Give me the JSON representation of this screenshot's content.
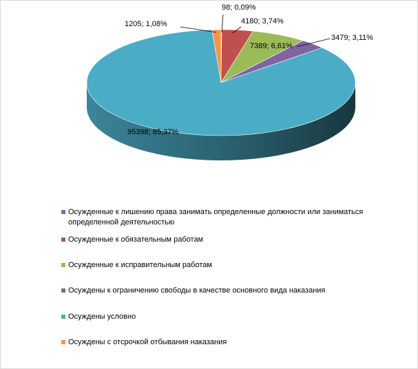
{
  "chart_data": {
    "type": "pie",
    "title": "",
    "legend_position": "bottom",
    "slices": [
      {
        "name": "Осужденные к лишению права занимать определенные должности или заниматься определенной деятельностью",
        "value": 98,
        "percent": 0.09,
        "label": "98; 0,09%",
        "color": "#4f81bd"
      },
      {
        "name": "Осужденные к обязательным работам",
        "value": 4180,
        "percent": 3.74,
        "label": "4180; 3,74%",
        "color": "#c0504d"
      },
      {
        "name": "Осужденные к исправительным работам",
        "value": 7389,
        "percent": 6.61,
        "label": "7389; 6,61%",
        "color": "#9bbb59"
      },
      {
        "name": "Осуждены к ограничению свободы в качестве основного вида наказания",
        "value": 3479,
        "percent": 3.11,
        "label": "3479; 3,11%",
        "color": "#8064a2"
      },
      {
        "name": "Осуждены условно",
        "value": 95398,
        "percent": 85.37,
        "label": "95398; 85,37%",
        "color": "#4bacc6"
      },
      {
        "name": "Осуждены с отсрочкой отбывания наказания",
        "value": 1205,
        "percent": 1.08,
        "label": "1205; 1,08%",
        "color": "#f79646"
      }
    ]
  }
}
